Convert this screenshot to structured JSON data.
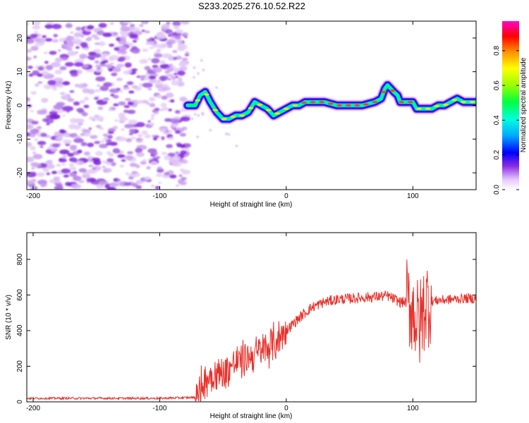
{
  "title": "S233.2025.276.10.52.R22",
  "chart_data": [
    {
      "type": "heatmap",
      "name": "spectrogram",
      "xlabel": "Height of straight line (km)",
      "ylabel": "Frequency (Hz)",
      "xlim": [
        -205,
        150
      ],
      "ylim": [
        -25,
        25
      ],
      "xticks": [
        -200,
        -100,
        0,
        100
      ],
      "yticks": [
        -20,
        -10,
        0,
        10,
        20
      ],
      "noise_region_x": [
        -205,
        -78
      ],
      "ridge": {
        "x": [
          -78,
          -72,
          -68,
          -64,
          -60,
          -55,
          -50,
          -45,
          -40,
          -35,
          -30,
          -25,
          -20,
          -15,
          -10,
          -5,
          0,
          5,
          10,
          15,
          20,
          30,
          40,
          50,
          60,
          70,
          75,
          78,
          80,
          85,
          88,
          90,
          95,
          100,
          103,
          105,
          110,
          115,
          120,
          125,
          130,
          135,
          140,
          145,
          150
        ],
        "y": [
          0,
          0,
          3,
          4,
          1,
          -2,
          -4,
          -4,
          -3,
          -3,
          -2,
          1,
          0,
          -1,
          -3,
          -2,
          -1,
          0,
          0,
          1,
          1,
          1,
          0,
          0,
          0,
          1,
          2,
          5,
          6,
          4,
          3,
          1,
          1,
          1,
          -1,
          -1,
          -1,
          -1,
          0,
          0,
          1,
          2,
          1,
          1,
          1
        ]
      },
      "colorbar": {
        "label": "Normalized spectral amplitude",
        "range": [
          0,
          0.97
        ],
        "ticks": [
          0.0,
          0.2,
          0.4,
          0.6,
          0.8
        ]
      }
    },
    {
      "type": "line",
      "name": "snr",
      "xlabel": "Height of straight line (km)",
      "ylabel": "SNR (10 * v/v)",
      "xlim": [
        -205,
        150
      ],
      "ylim": [
        0,
        950
      ],
      "xticks": [
        -200,
        -100,
        0,
        100
      ],
      "yticks": [
        0,
        200,
        400,
        600,
        800
      ],
      "color": "#e8302a",
      "trend": {
        "x": [
          -205,
          -150,
          -100,
          -70,
          -65,
          -60,
          -50,
          -40,
          -30,
          -20,
          -10,
          0,
          10,
          20,
          30,
          40,
          50,
          60,
          70,
          80,
          90,
          95,
          100,
          105,
          110,
          120,
          130,
          140,
          150
        ],
        "y": [
          20,
          20,
          20,
          25,
          120,
          150,
          160,
          220,
          250,
          280,
          330,
          400,
          470,
          530,
          560,
          575,
          580,
          585,
          590,
          595,
          560,
          560,
          520,
          420,
          560,
          570,
          575,
          580,
          580
        ]
      }
    }
  ]
}
